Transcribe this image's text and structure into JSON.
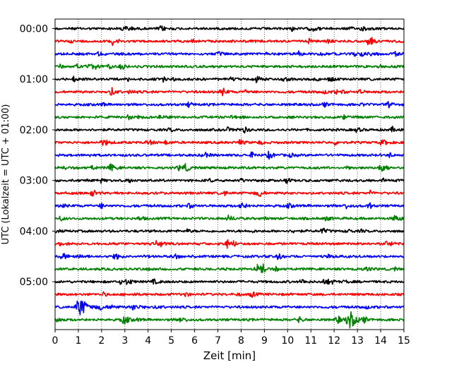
{
  "chart_data": {
    "type": "line",
    "subtype": "helicorder",
    "xlabel": "Zeit  [min]",
    "ylabel": "UTC (Lokalzeit = UTC + 01:00)",
    "xlim": [
      0,
      15
    ],
    "x_ticks": [
      "0",
      "1",
      "2",
      "3",
      "4",
      "5",
      "6",
      "7",
      "8",
      "9",
      "10",
      "11",
      "12",
      "13",
      "14",
      "15"
    ],
    "y_ticks": [
      "00:00",
      "01:00",
      "02:00",
      "03:00",
      "04:00",
      "05:00"
    ],
    "row_minutes": 15,
    "trace_colors": [
      "#000000",
      "#ff0000",
      "#0000ff",
      "#008000"
    ],
    "grid": {
      "x": "dotted",
      "y": false
    },
    "legend": "none",
    "traces": [
      {
        "start": "00:00",
        "color": "#000000"
      },
      {
        "start": "00:15",
        "color": "#ff0000"
      },
      {
        "start": "00:30",
        "color": "#0000ff"
      },
      {
        "start": "00:45",
        "color": "#008000"
      },
      {
        "start": "01:00",
        "color": "#000000"
      },
      {
        "start": "01:15",
        "color": "#ff0000"
      },
      {
        "start": "01:30",
        "color": "#0000ff"
      },
      {
        "start": "01:45",
        "color": "#008000"
      },
      {
        "start": "02:00",
        "color": "#000000"
      },
      {
        "start": "02:15",
        "color": "#ff0000"
      },
      {
        "start": "02:30",
        "color": "#0000ff"
      },
      {
        "start": "02:45",
        "color": "#008000"
      },
      {
        "start": "03:00",
        "color": "#000000"
      },
      {
        "start": "03:15",
        "color": "#ff0000"
      },
      {
        "start": "03:30",
        "color": "#0000ff"
      },
      {
        "start": "03:45",
        "color": "#008000"
      },
      {
        "start": "04:00",
        "color": "#000000"
      },
      {
        "start": "04:15",
        "color": "#ff0000"
      },
      {
        "start": "04:30",
        "color": "#0000ff"
      },
      {
        "start": "04:45",
        "color": "#008000"
      },
      {
        "start": "05:00",
        "color": "#000000"
      },
      {
        "start": "05:15",
        "color": "#ff0000"
      },
      {
        "start": "05:30",
        "color": "#0000ff"
      },
      {
        "start": "05:45",
        "color": "#008000"
      }
    ],
    "notable_events": [
      {
        "start": "00:15",
        "minute": 2.5,
        "amplitude": "medium"
      },
      {
        "start": "01:15",
        "minute": 2.45,
        "amplitude": "medium"
      },
      {
        "start": "01:15",
        "minute": 7.2,
        "amplitude": "medium"
      },
      {
        "start": "02:45",
        "minute": 2.4,
        "amplitude": "medium"
      },
      {
        "start": "02:45",
        "minute": 5.6,
        "amplitude": "medium"
      },
      {
        "start": "03:30",
        "minute": 8.0,
        "amplitude": "medium"
      },
      {
        "start": "04:15",
        "minute": 7.4,
        "amplitude": "medium"
      },
      {
        "start": "04:45",
        "minute": 8.7,
        "amplitude": "medium"
      },
      {
        "start": "05:30",
        "minute": 1.1,
        "amplitude": "large"
      },
      {
        "start": "05:45",
        "minute": 12.7,
        "amplitude": "large"
      }
    ]
  }
}
